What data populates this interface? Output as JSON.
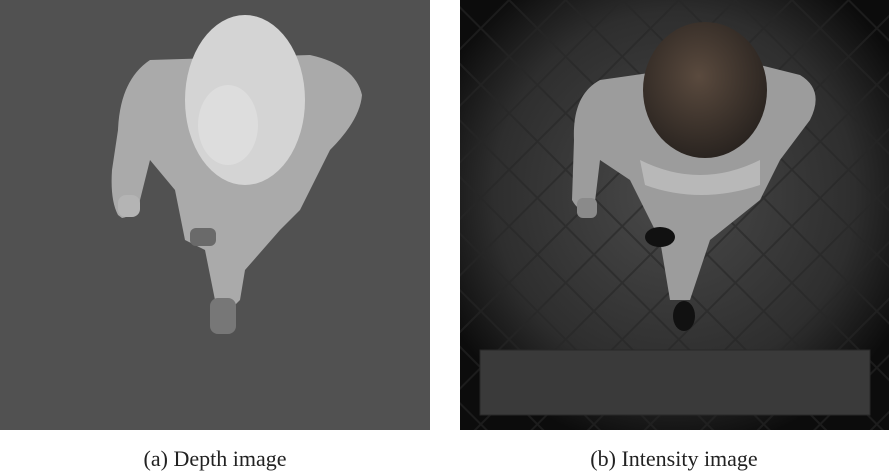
{
  "figure": {
    "subfigures": [
      {
        "caption": "(a) Depth image"
      },
      {
        "caption": "(b) Intensity image"
      }
    ]
  }
}
